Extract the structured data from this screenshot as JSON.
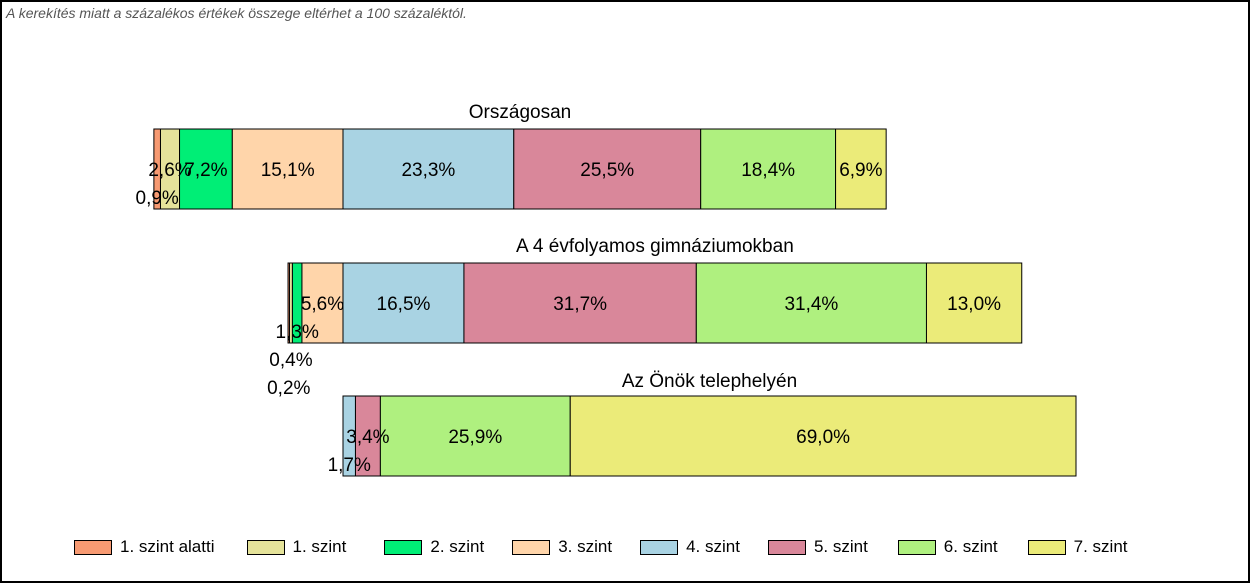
{
  "note": "A kerekítés miatt a  százalékos értékek összege eltérhet a 100 százaléktól.",
  "colors": {
    "1. szint alatti": "#F79A72",
    "1. szint": "#E5E39A",
    "2. szint": "#00EE76",
    "3. szint": "#FFD5AA",
    "4. szint": "#A9D3E3",
    "5. szint": "#D9879A",
    "6. szint": "#AFF07F",
    "7. szint": "#EBEB79"
  },
  "legend": [
    {
      "label": "1. szint alatti",
      "color": "#F79A72"
    },
    {
      "label": "1. szint",
      "color": "#E5E39A"
    },
    {
      "label": "2. szint",
      "color": "#00EE76"
    },
    {
      "label": "3. szint",
      "color": "#FFD5AA"
    },
    {
      "label": "4. szint",
      "color": "#A9D3E3"
    },
    {
      "label": "5. szint",
      "color": "#D9879A"
    },
    {
      "label": "6. szint",
      "color": "#AFF07F"
    },
    {
      "label": "7. szint",
      "color": "#EBEB79"
    }
  ],
  "chart_data": {
    "type": "bar",
    "orientation": "horizontal-stacked-diverging",
    "categories": [
      "1. szint alatti",
      "1. szint",
      "2. szint",
      "3. szint",
      "4. szint",
      "5. szint",
      "6. szint",
      "7. szint"
    ],
    "series": [
      {
        "name": "Országosan",
        "values": [
          0.9,
          2.6,
          7.2,
          15.1,
          23.3,
          25.5,
          18.4,
          6.9
        ],
        "labels": [
          "0,9%",
          "2,6%",
          "7,2%",
          "15,1%",
          "23,3%",
          "25,5%",
          "18,4%",
          "6,9%"
        ]
      },
      {
        "name": "A 4 évfolyamos gimnáziumokban",
        "values": [
          0.2,
          0.4,
          1.3,
          5.6,
          16.5,
          31.7,
          31.4,
          13.0
        ],
        "labels": [
          "0,2%",
          "0,4%",
          "1,3%",
          "5,6%",
          "16,5%",
          "31,7%",
          "31,4%",
          "13,0%"
        ]
      },
      {
        "name": "Az Önök telephelyén",
        "values": [
          0,
          0,
          0,
          0,
          1.7,
          3.4,
          25.9,
          69.0
        ],
        "labels": [
          "",
          "",
          "",
          "",
          "1,7%",
          "3,4%",
          "25,9%",
          "69,0%"
        ]
      }
    ],
    "xlabel": "",
    "ylabel": "",
    "grid": false,
    "legend_position": "bottom"
  }
}
